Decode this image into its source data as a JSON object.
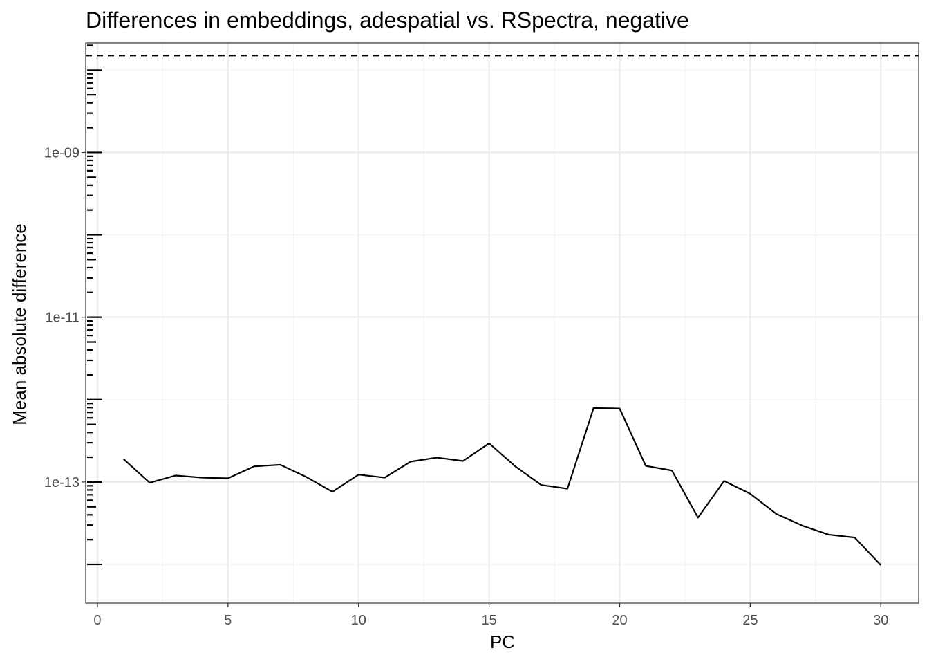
{
  "chart_data": {
    "type": "line",
    "title": "Differences in embeddings, adespatial vs. RSpectra, negative",
    "xlabel": "PC",
    "ylabel": "Mean absolute difference",
    "x_scale": "linear",
    "y_scale": "log10",
    "xlim": [
      -0.45,
      31.45
    ],
    "ylim_log10": [
      -14.47,
      -7.67
    ],
    "x_ticks": [
      0,
      5,
      10,
      15,
      20,
      25,
      30
    ],
    "x_tick_labels": [
      "0",
      "5",
      "10",
      "15",
      "20",
      "25",
      "30"
    ],
    "y_ticks": [
      1e-09,
      1e-11,
      1e-13
    ],
    "y_tick_labels": [
      "1e-09",
      "1e-11",
      "1e-13"
    ],
    "y_minor_decades": [
      -14,
      -13,
      -12,
      -11,
      -10,
      -9,
      -8
    ],
    "grid": true,
    "legend": "none",
    "series": [
      {
        "x": [
          1,
          2,
          3,
          4,
          5,
          6,
          7,
          8,
          9,
          10,
          11,
          12,
          13,
          14,
          15,
          16,
          17,
          18,
          19,
          20,
          21,
          22,
          23,
          24,
          25,
          26,
          27,
          28,
          29,
          30
        ],
        "values": [
          1.9e-13,
          9.8e-14,
          1.2e-13,
          1.13e-13,
          1.11e-13,
          1.55e-13,
          1.62e-13,
          1.15e-13,
          7.6e-14,
          1.23e-13,
          1.13e-13,
          1.77e-13,
          1.98e-13,
          1.8e-13,
          2.95e-13,
          1.55e-13,
          9.2e-14,
          8.3e-14,
          7.9e-13,
          7.8e-13,
          1.57e-13,
          1.38e-13,
          3.7e-14,
          1.03e-13,
          7.2e-14,
          4.1e-14,
          2.95e-14,
          2.3e-14,
          2.12e-14,
          9.8e-15
        ],
        "color": "#000000",
        "style": "solid"
      }
    ],
    "reference_line": {
      "y": 1.5e-08,
      "style": "dashed",
      "color": "#000000"
    }
  }
}
